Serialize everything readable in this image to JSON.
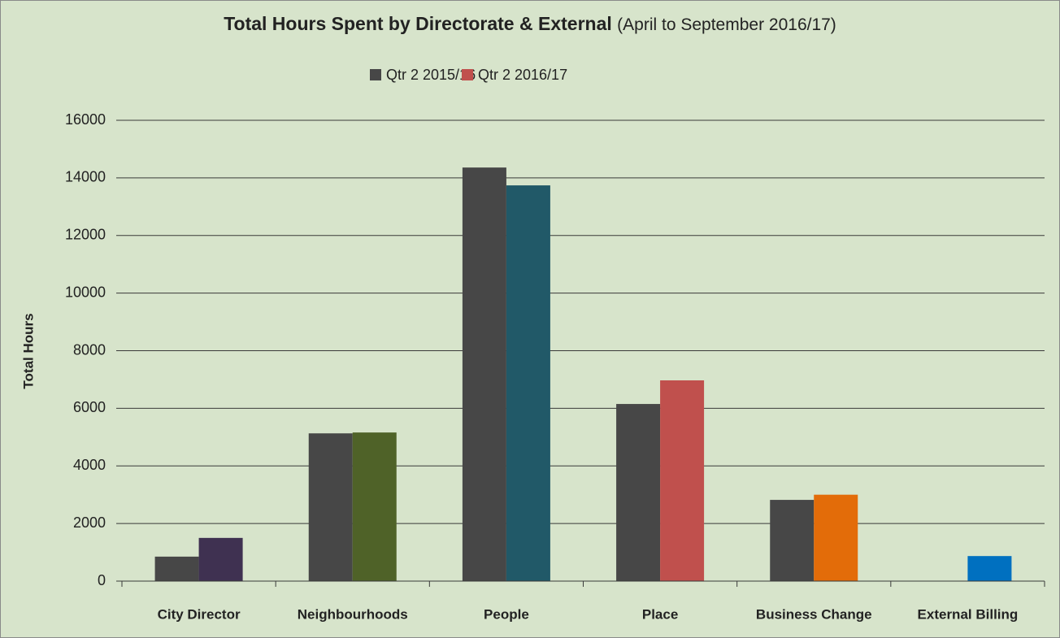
{
  "chart_data": {
    "type": "bar",
    "title": "Total Hours Spent by Directorate & External",
    "subtitle": "(April to September 2016/17)",
    "y_label": "Total Hours",
    "categories": [
      "City Director",
      "Neighbourhoods",
      "People",
      "Place",
      "Business Change",
      "External Billing"
    ],
    "series": [
      {
        "name": "Qtr 2 2015/16",
        "color": "#474747",
        "values": [
          850,
          5130,
          14360,
          6150,
          2820,
          null
        ]
      },
      {
        "name": "Qtr 2 2016/17",
        "color": "#c0504d",
        "colors": [
          "#3f3151",
          "#4f6228",
          "#215968",
          "#c0504d",
          "#e36c09",
          "#0070c0"
        ],
        "values": [
          1500,
          5160,
          13740,
          6970,
          3000,
          870
        ]
      }
    ],
    "ylim": [
      0,
      16000
    ],
    "yticks": [
      0,
      2000,
      4000,
      6000,
      8000,
      10000,
      12000,
      14000,
      16000
    ],
    "grid": true,
    "legend": "top"
  }
}
